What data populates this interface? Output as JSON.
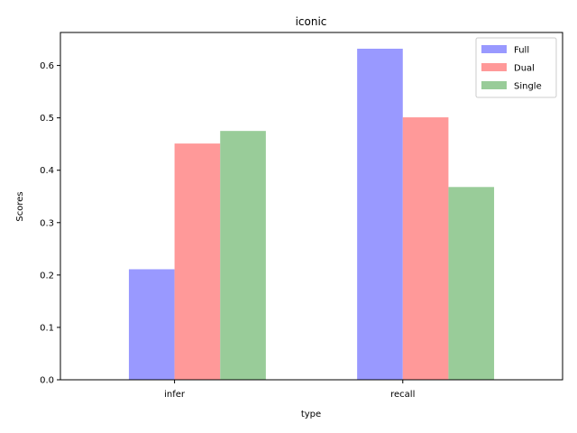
{
  "chart_data": {
    "type": "bar",
    "title": "iconic",
    "xlabel": "type",
    "ylabel": "Scores",
    "categories": [
      "infer",
      "recall"
    ],
    "series": [
      {
        "name": "Full",
        "values": [
          0.211,
          0.632
        ],
        "color": "#9999ff"
      },
      {
        "name": "Dual",
        "values": [
          0.451,
          0.501
        ],
        "color": "#ff9999"
      },
      {
        "name": "Single",
        "values": [
          0.475,
          0.368
        ],
        "color": "#99cc99"
      }
    ],
    "ylim": [
      0,
      0.663
    ],
    "yticks": [
      "0.0",
      "0.1",
      "0.2",
      "0.3",
      "0.4",
      "0.5",
      "0.6"
    ],
    "grid": false,
    "legend_position": "top-right"
  }
}
